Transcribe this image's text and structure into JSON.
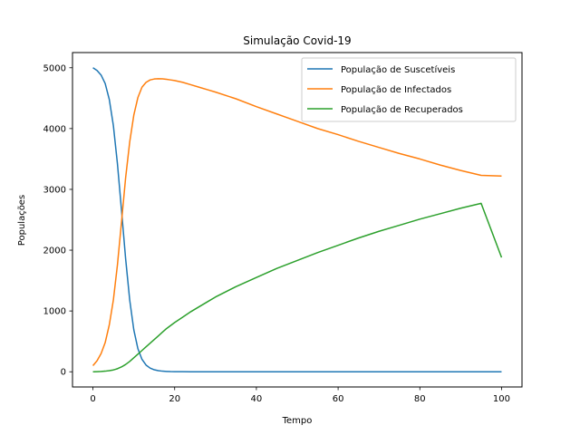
{
  "chart_data": {
    "type": "line",
    "title": "Simulação Covid-19",
    "xlabel": "Tempo",
    "ylabel": "Populações",
    "xlim": [
      -5,
      105
    ],
    "ylim": [
      -250,
      5250
    ],
    "xticks": [
      0,
      20,
      40,
      60,
      80,
      100
    ],
    "yticks": [
      0,
      1000,
      2000,
      3000,
      4000,
      5000
    ],
    "grid": false,
    "legend_position": "top-right",
    "x": [
      0,
      1,
      2,
      3,
      4,
      5,
      6,
      7,
      8,
      9,
      10,
      11,
      12,
      13,
      14,
      15,
      16,
      17,
      18,
      19,
      20,
      22,
      24,
      26,
      28,
      30,
      35,
      40,
      45,
      50,
      55,
      60,
      65,
      70,
      75,
      80,
      85,
      90,
      95,
      100
    ],
    "series": [
      {
        "name": "População de Suscetíveis",
        "color": "#1f77b4",
        "values": [
          5000,
          4955,
          4880,
          4740,
          4480,
          4050,
          3420,
          2650,
          1860,
          1180,
          690,
          380,
          205,
          110,
          60,
          33,
          18,
          10,
          6,
          3,
          2,
          1,
          0,
          0,
          0,
          0,
          0,
          0,
          0,
          0,
          0,
          0,
          0,
          0,
          0,
          0,
          0,
          0,
          0,
          0
        ]
      },
      {
        "name": "População de Infectados",
        "color": "#ff7f0e",
        "values": [
          100,
          180,
          300,
          480,
          770,
          1180,
          1760,
          2470,
          3190,
          3780,
          4220,
          4510,
          4680,
          4760,
          4800,
          4815,
          4820,
          4818,
          4810,
          4800,
          4790,
          4760,
          4720,
          4680,
          4640,
          4600,
          4490,
          4360,
          4240,
          4120,
          4000,
          3900,
          3790,
          3690,
          3590,
          3500,
          3400,
          3310,
          3230,
          3220
        ]
      },
      {
        "name": "População de Recuperados",
        "color": "#2ca02c",
        "values": [
          0,
          2,
          5,
          10,
          18,
          30,
          50,
          80,
          120,
          170,
          230,
          290,
          350,
          410,
          470,
          530,
          590,
          650,
          710,
          760,
          810,
          900,
          990,
          1070,
          1150,
          1230,
          1400,
          1550,
          1700,
          1830,
          1960,
          2080,
          2200,
          2310,
          2410,
          2510,
          2600,
          2690,
          2770,
          1880
        ]
      }
    ]
  }
}
